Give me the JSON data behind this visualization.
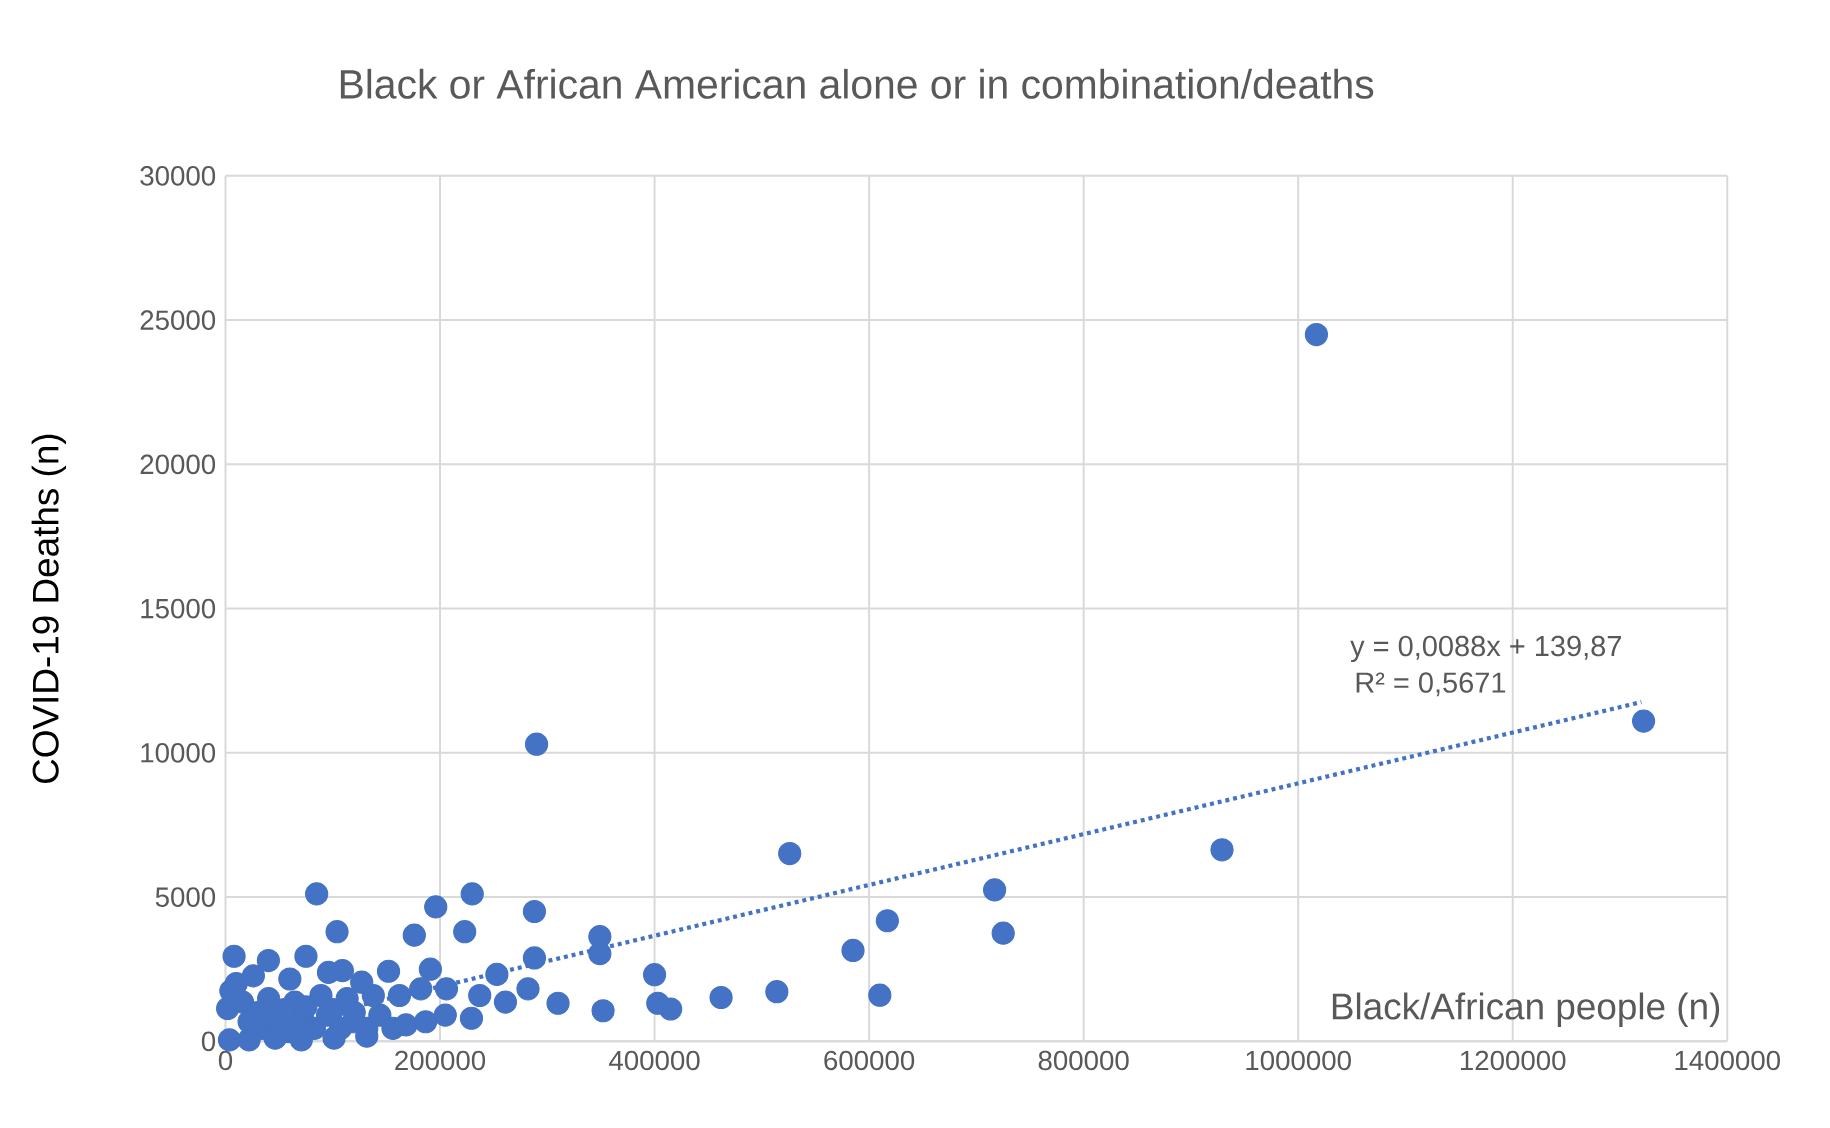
{
  "chart_data": {
    "type": "scatter",
    "title": "Black or African American alone or in combination/deaths",
    "xlabel": "Black/African people (n)",
    "ylabel": "COVID-19 Deaths (n)",
    "xlim": [
      0,
      1400000
    ],
    "ylim": [
      0,
      30000
    ],
    "xticks": [
      0,
      200000,
      400000,
      600000,
      800000,
      1000000,
      1200000,
      1400000
    ],
    "yticks": [
      0,
      5000,
      10000,
      15000,
      20000,
      25000,
      30000
    ],
    "grid": true,
    "annotations": [
      "y = 0,0088x + 139,87",
      "R² = 0,5671"
    ],
    "series": [
      {
        "color": "#4472c4",
        "marker": "circle",
        "x": [
          1017000,
          1322000,
          929000,
          526000,
          717000,
          725000,
          617000,
          585000,
          610000,
          514000,
          462000,
          415000,
          403000,
          400000,
          352000,
          349000,
          349000,
          290000,
          85000,
          230000,
          196000,
          288000,
          104000,
          176000,
          223000,
          8000,
          288000,
          75000,
          40000,
          152000,
          109000,
          191000,
          253000,
          282000,
          310000,
          5000,
          26000,
          60000,
          96000,
          127000,
          182000,
          206000,
          237000,
          261000,
          22000,
          34100,
          46300,
          58500,
          70700,
          82900,
          95100,
          107300,
          119500,
          131700,
          143900,
          156100,
          168300,
          186600,
          204900,
          229300,
          2000,
          15900,
          40200,
          64600,
          89000,
          113400,
          137800,
          162200,
          3700,
          22000,
          46300,
          70700,
          101200,
          131700,
          30000,
          55000,
          75000,
          100000,
          120000,
          10000
        ],
        "values": [
          24500,
          11100,
          6640,
          6510,
          5250,
          3750,
          4180,
          3150,
          1600,
          1720,
          1520,
          1120,
          1320,
          2310,
          1060,
          3630,
          3040,
          10300,
          5110,
          5110,
          4660,
          4500,
          3800,
          3680,
          3800,
          2950,
          2890,
          2950,
          2800,
          2430,
          2450,
          2500,
          2320,
          1820,
          1320,
          1750,
          2270,
          2160,
          2390,
          2050,
          1820,
          1820,
          1590,
          1360,
          680,
          450,
          800,
          340,
          680,
          450,
          910,
          450,
          680,
          450,
          910,
          450,
          570,
          680,
          910,
          800,
          1140,
          1360,
          1480,
          1360,
          1590,
          1480,
          1590,
          1590,
          50,
          50,
          110,
          50,
          110,
          180,
          1000,
          1100,
          1200,
          1100,
          1000,
          2000
        ]
      },
      {
        "type": "line",
        "color": "#4472c4",
        "marker": "none",
        "line_style": "dotted",
        "x": [
          0,
          1320000
        ],
        "values": [
          140,
          11760
        ]
      }
    ]
  }
}
